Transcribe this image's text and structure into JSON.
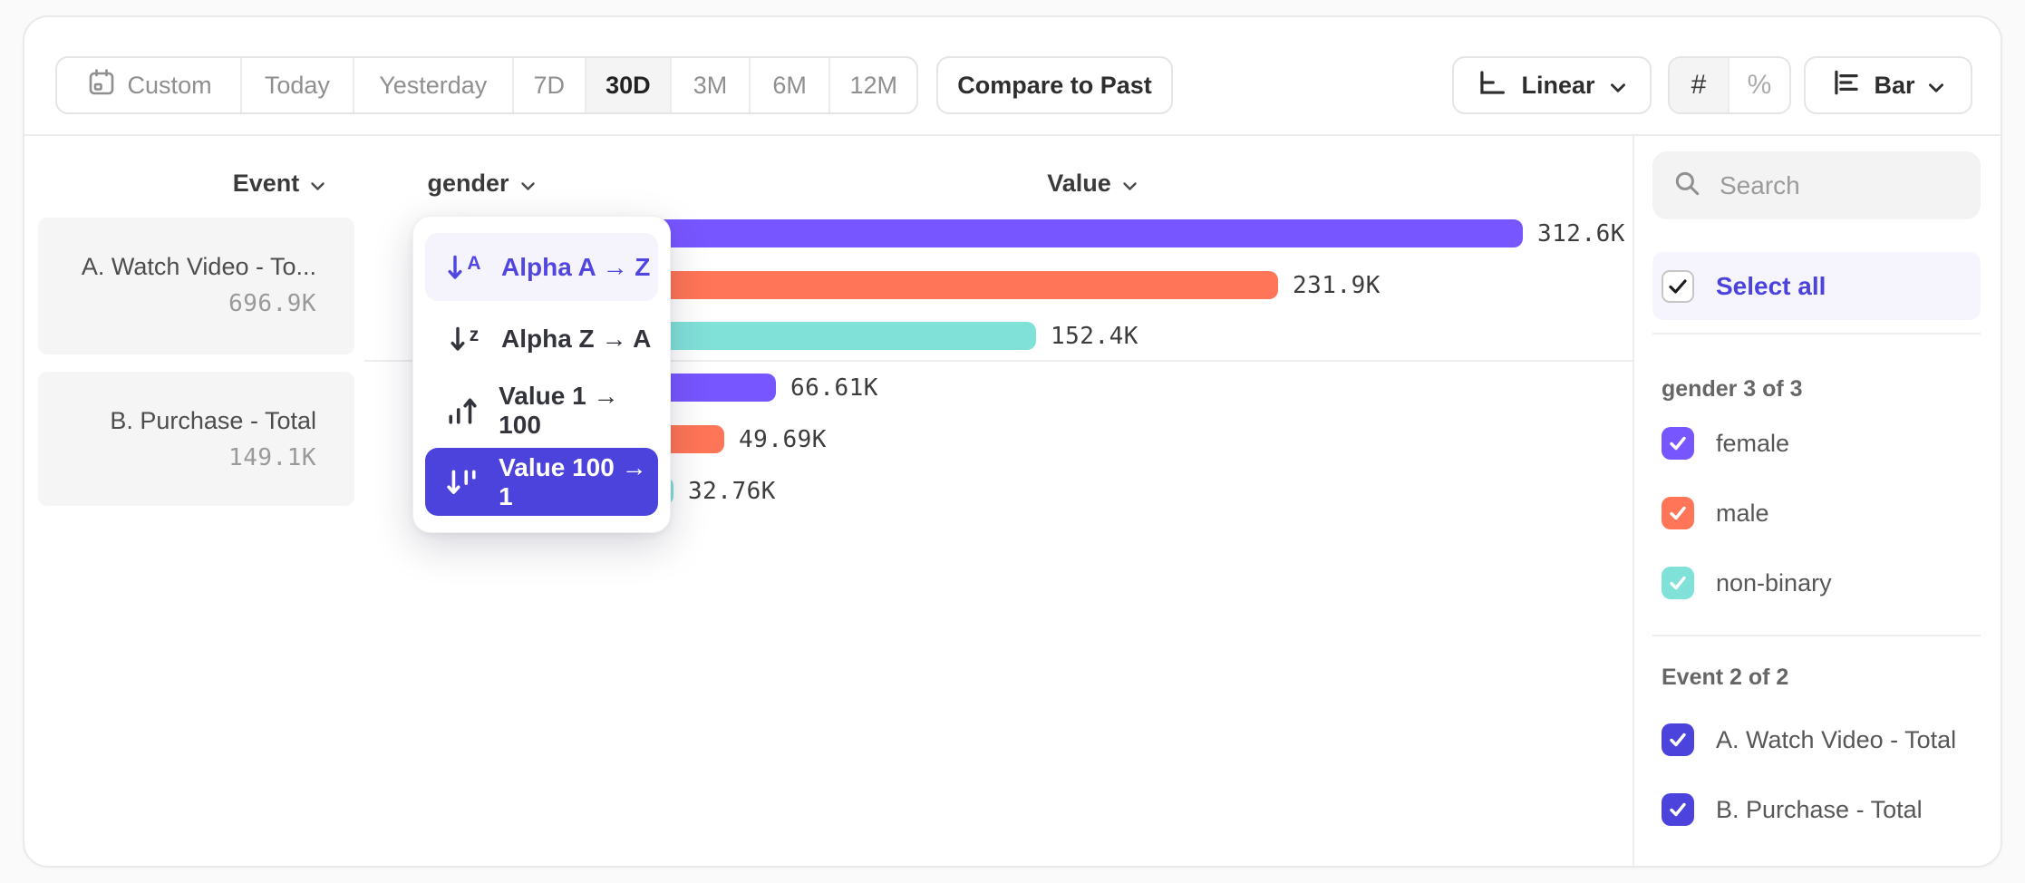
{
  "toolbar": {
    "date_ranges": [
      "Custom",
      "Today",
      "Yesterday",
      "7D",
      "30D",
      "3M",
      "6M",
      "12M"
    ],
    "selected_range": "30D",
    "compare_label": "Compare to Past",
    "scale_label": "Linear",
    "count_symbol": "#",
    "percent_symbol": "%",
    "count_mode_selected": "#",
    "chart_type_label": "Bar"
  },
  "headers": {
    "event": "Event",
    "breakdown": "gender",
    "value": "Value"
  },
  "events": [
    {
      "name": "A. Watch Video - To...",
      "total": "696.9K"
    },
    {
      "name": "B. Purchase - Total",
      "total": "149.1K"
    }
  ],
  "sort_menu": {
    "items": [
      {
        "label": "Alpha A → Z",
        "icon": "sort-alpha-asc",
        "state": "hover"
      },
      {
        "label": "Alpha Z → A",
        "icon": "sort-alpha-desc",
        "state": "normal"
      },
      {
        "label": "Value 1 → 100",
        "icon": "sort-value-asc",
        "state": "normal"
      },
      {
        "label": "Value 100 → 1",
        "icon": "sort-value-desc",
        "state": "selected"
      }
    ]
  },
  "chart_data": {
    "type": "bar",
    "orientation": "horizontal",
    "x_max": 312600,
    "groups": [
      {
        "event": "A. Watch Video - Total",
        "bars": [
          {
            "segment": "female",
            "value": 312600,
            "label": "312.6K",
            "color": "#7856FF"
          },
          {
            "segment": "male",
            "value": 231900,
            "label": "231.9K",
            "color": "#FF7557"
          },
          {
            "segment": "non-binary",
            "value": 152400,
            "label": "152.4K",
            "color": "#80E1D9"
          }
        ]
      },
      {
        "event": "B. Purchase - Total",
        "bars": [
          {
            "segment": "female",
            "value": 66610,
            "label": "66.61K",
            "color": "#7856FF"
          },
          {
            "segment": "male",
            "value": 49690,
            "label": "49.69K",
            "color": "#FF7557"
          },
          {
            "segment": "non-binary",
            "value": 32760,
            "label": "32.76K",
            "color": "#80E1D9"
          }
        ]
      }
    ]
  },
  "sidebar": {
    "search_placeholder": "Search",
    "select_all_label": "Select all",
    "sections": [
      {
        "title": "gender 3 of 3",
        "items": [
          {
            "label": "female",
            "color": "#7856FF",
            "checked": true
          },
          {
            "label": "male",
            "color": "#FF7557",
            "checked": true
          },
          {
            "label": "non-binary",
            "color": "#80E1D9",
            "checked": true
          }
        ]
      },
      {
        "title": "Event 2 of 2",
        "items": [
          {
            "label": "A. Watch Video - Total",
            "color": "#4C43DC",
            "checked": true
          },
          {
            "label": "B. Purchase - Total",
            "color": "#4C43DC",
            "checked": true
          }
        ]
      }
    ]
  },
  "colors": {
    "series_purple": "#7856FF",
    "series_orange": "#FF7557",
    "series_teal": "#80E1D9",
    "accent_indigo": "#4C43DC",
    "accent_indigo_text": "#5146E0",
    "menu_hover_bg": "#F5F4FD",
    "selected_segment_bg": "#F4F4F5"
  }
}
